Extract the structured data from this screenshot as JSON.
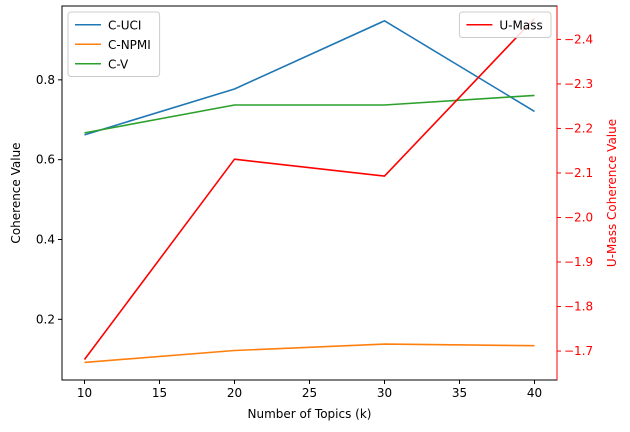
{
  "chart_data": {
    "type": "line",
    "xlabel": "Number of Topics (k)",
    "ylabel": "Coherence Value",
    "y2label": "U-Mass Coherence Value",
    "x": [
      10,
      20,
      30,
      40
    ],
    "xlim": [
      8.5,
      41.5
    ],
    "xticks": [
      10,
      15,
      20,
      25,
      30,
      35,
      40
    ],
    "ylim": [
      0.048,
      0.985
    ],
    "yticks": [
      0.2,
      0.4,
      0.6,
      0.8
    ],
    "y2lim": [
      -1.635,
      -2.475
    ],
    "y2_inverted": true,
    "y2ticks": [
      -1.7,
      -1.8,
      -1.9,
      -2.0,
      -2.1,
      -2.2,
      -2.3,
      -2.4
    ],
    "y2_axis_color": "#ff0000",
    "grid": false,
    "series": [
      {
        "name": "C-UCI",
        "axis": "left",
        "color": "#1f77b4",
        "values": [
          0.662,
          0.777,
          0.948,
          0.721
        ]
      },
      {
        "name": "C-NPMI",
        "axis": "left",
        "color": "#ff7f0e",
        "values": [
          0.092,
          0.122,
          0.138,
          0.134
        ]
      },
      {
        "name": "C-V",
        "axis": "left",
        "color": "#2ca02c",
        "values": [
          0.667,
          0.737,
          0.737,
          0.761
        ]
      },
      {
        "name": "U-Mass",
        "axis": "right",
        "color": "#ff0000",
        "values": [
          -1.681,
          -2.131,
          -2.093,
          -2.447
        ]
      }
    ],
    "legends": [
      {
        "placement": "upper-left",
        "entries": [
          "C-UCI",
          "C-NPMI",
          "C-V"
        ]
      },
      {
        "placement": "upper-right",
        "entries": [
          "U-Mass"
        ]
      }
    ]
  }
}
